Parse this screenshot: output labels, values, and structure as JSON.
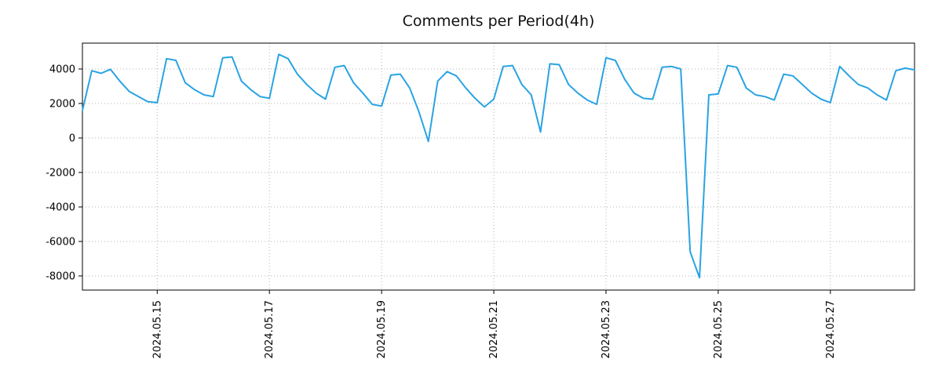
{
  "chart_data": {
    "type": "line",
    "title": "Comments per Period(4h)",
    "legend": "none",
    "grid": "dotted",
    "xlim": [
      0,
      356
    ],
    "ylim": [
      -8820,
      5500
    ],
    "y_ticks": [
      4000,
      2000,
      0,
      -2000,
      -4000,
      -6000,
      -8000
    ],
    "x_ticks": [
      {
        "hour": 32,
        "label": "2024.05.15"
      },
      {
        "hour": 80,
        "label": "2024.05.17"
      },
      {
        "hour": 128,
        "label": "2024.05.19"
      },
      {
        "hour": 176,
        "label": "2024.05.21"
      },
      {
        "hour": 224,
        "label": "2024.05.23"
      },
      {
        "hour": 272,
        "label": "2024.05.25"
      },
      {
        "hour": 320,
        "label": "2024.05.27"
      }
    ],
    "series": {
      "color": "#29a3e3",
      "x_hours": [
        0,
        4,
        8,
        12,
        16,
        20,
        24,
        28,
        32,
        36,
        40,
        44,
        48,
        52,
        56,
        60,
        64,
        68,
        72,
        76,
        80,
        84,
        88,
        92,
        96,
        100,
        104,
        108,
        112,
        116,
        120,
        124,
        128,
        132,
        136,
        140,
        144,
        148,
        152,
        156,
        160,
        164,
        168,
        172,
        176,
        180,
        184,
        188,
        192,
        196,
        200,
        204,
        208,
        212,
        216,
        220,
        224,
        228,
        232,
        236,
        240,
        244,
        248,
        252,
        256,
        260,
        264,
        268,
        272,
        276,
        280,
        284,
        288,
        292,
        296,
        300,
        304,
        308,
        312,
        316,
        320,
        324,
        328,
        332,
        336,
        340,
        344,
        348,
        352,
        356
      ],
      "values": [
        1600,
        3900,
        3750,
        3980,
        3300,
        2700,
        2400,
        2100,
        2050,
        4600,
        4500,
        3200,
        2800,
        2500,
        2400,
        4650,
        4700,
        3300,
        2800,
        2400,
        2300,
        4850,
        4600,
        3700,
        3100,
        2600,
        2250,
        4100,
        4200,
        3200,
        2600,
        1950,
        1850,
        3650,
        3700,
        2900,
        1500,
        -200,
        3300,
        3850,
        3600,
        2900,
        2300,
        1800,
        2250,
        4150,
        4200,
        3100,
        2500,
        350,
        4300,
        4250,
        3100,
        2600,
        2200,
        1950,
        4650,
        4500,
        3400,
        2600,
        2300,
        2250,
        4100,
        4150,
        4000,
        -6600,
        -8100,
        2500,
        2550,
        4200,
        4100,
        2900,
        2500,
        2400,
        2200,
        3700,
        3600,
        3100,
        2600,
        2250,
        2050,
        4150,
        3600,
        3100,
        2900,
        2500,
        2200,
        3900,
        4050,
        3950
      ]
    }
  }
}
